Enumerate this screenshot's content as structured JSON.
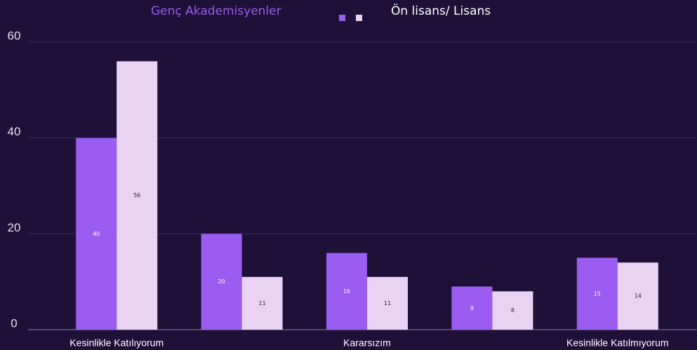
{
  "chart_data": {
    "type": "bar",
    "categories": [
      "Kesinlikle Katılıyorum",
      null,
      "Kararsızım",
      null,
      "Kesinlikle Katılmıyorum"
    ],
    "series": [
      {
        "name": "Genç Akademisyenler",
        "color": "#9b5cf2",
        "values": [
          40,
          20,
          16,
          9,
          15
        ]
      },
      {
        "name": "Ön lisans/ Lisans",
        "color": "#ead3f2",
        "values": [
          56,
          11,
          11,
          8,
          14
        ]
      }
    ],
    "ylim": [
      0,
      60
    ],
    "yticks": [
      0,
      20,
      40,
      60
    ],
    "grid": true,
    "data_labels": true
  }
}
